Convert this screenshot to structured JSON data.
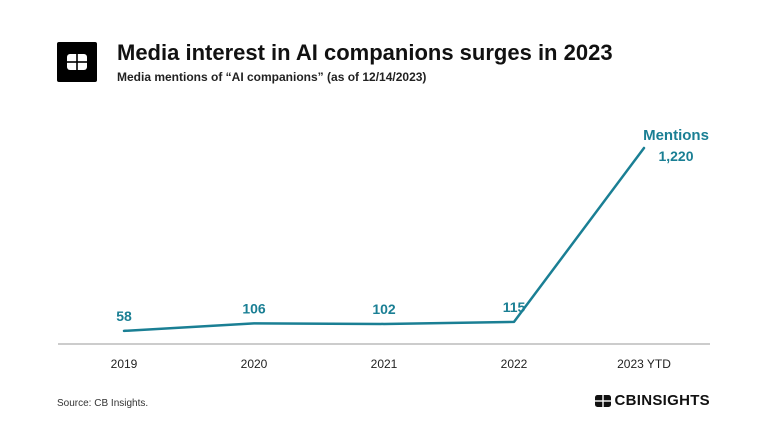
{
  "header": {
    "title": "Media interest in AI companions surges in 2023",
    "subtitle": "Media mentions of “AI companions” (as of 12/14/2023)"
  },
  "footer": {
    "source": "Source: CB Insights.",
    "brand": "CBINSIGHTS"
  },
  "colors": {
    "series": "#1a7f94",
    "axis": "#9a9a9a",
    "text": "#111111"
  },
  "chart_data": {
    "type": "line",
    "categories": [
      "2019",
      "2020",
      "2021",
      "2022",
      "2023 YTD"
    ],
    "series": [
      {
        "name": "Mentions",
        "values": [
          58,
          106,
          102,
          115,
          1220
        ]
      }
    ],
    "data_labels": [
      "58",
      "106",
      "102",
      "115",
      "1,220"
    ],
    "ylim": [
      0,
      1220
    ],
    "grid": false,
    "legend": "end-of-line label"
  }
}
